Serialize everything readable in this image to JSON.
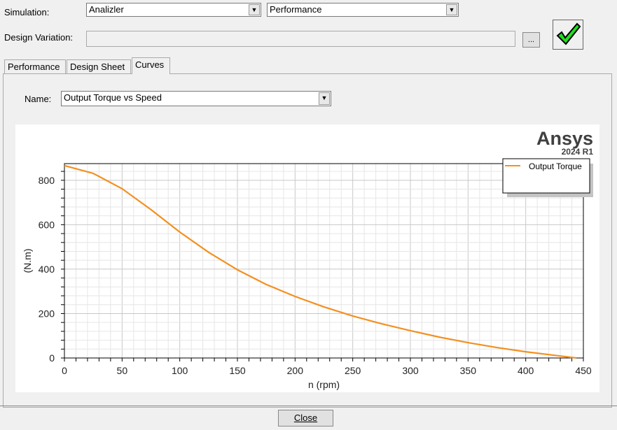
{
  "simulation": {
    "label": "Simulation:",
    "value1": "Analizler",
    "value2": "Performance"
  },
  "design_variation": {
    "label": "Design Variation:",
    "value": "",
    "browse_label": "..."
  },
  "ok_icon": "green-checkmark-icon",
  "tabs": [
    {
      "label": "Performance"
    },
    {
      "label": "Design Sheet"
    },
    {
      "label": "Curves",
      "active": true
    }
  ],
  "curves": {
    "name_label": "Name:",
    "name_value": "Output Torque vs Speed"
  },
  "watermark": {
    "brand": "Ansys",
    "version": "2024 R1"
  },
  "close_label": "Close",
  "chart_data": {
    "type": "line",
    "title": "",
    "xlabel": "n (rpm)",
    "ylabel": "(N.m)",
    "xlim": [
      0,
      450
    ],
    "ylim": [
      0,
      875
    ],
    "xticks": [
      0,
      50,
      100,
      150,
      200,
      250,
      300,
      350,
      400,
      450
    ],
    "yticks": [
      0,
      200,
      400,
      600,
      800
    ],
    "grid": true,
    "legend": "top-right",
    "series": [
      {
        "name": "Output Torque",
        "color": "#f39020",
        "x": [
          0,
          25,
          50,
          75,
          100,
          125,
          150,
          175,
          200,
          225,
          250,
          275,
          300,
          325,
          350,
          375,
          400,
          425,
          444
        ],
        "y": [
          866,
          831,
          762,
          668,
          567,
          476,
          397,
          331,
          277,
          230,
          189,
          154,
          123,
          94,
          69,
          47,
          28,
          12,
          0
        ]
      }
    ]
  }
}
